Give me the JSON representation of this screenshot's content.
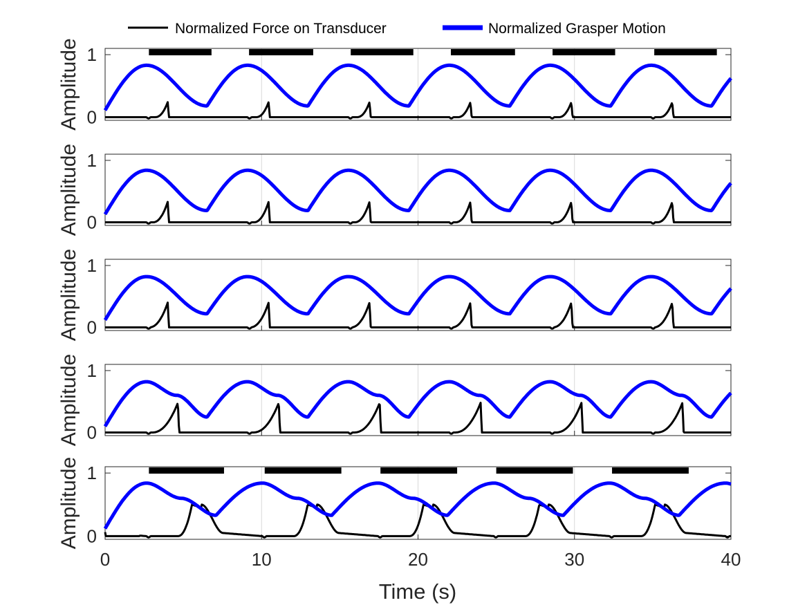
{
  "chart_data": {
    "type": "line",
    "legend": {
      "position": "top",
      "entries": [
        "Normalized Force on Transducer",
        "Normalized Grasper Motion"
      ]
    },
    "xlabel": "Time (s)",
    "xlim": [
      0,
      40
    ],
    "xticks": [
      0,
      10,
      20,
      30,
      40
    ],
    "xtick_labels": [
      "0",
      "10",
      "20",
      "30",
      "40"
    ],
    "grid": true,
    "colors": {
      "force": "#000000",
      "motion": "#0000ff",
      "axes": "#262626",
      "grid": "#d9d9d9"
    },
    "panels": [
      {
        "ylabel": "Amplitude",
        "ylim": [
          -0.05,
          1.1
        ],
        "yticks": [
          0,
          1
        ],
        "ytick_labels": [
          "0",
          "1"
        ],
        "period": 6.45,
        "phase": 0,
        "motion": {
          "max": 0.83,
          "min": 0.18,
          "start": 0.11,
          "end": 0.6,
          "shoulder": 0
        },
        "force": {
          "peak": 0.24,
          "onset": 0.5,
          "peak_offset": 1.35,
          "decay": false
        },
        "phase_bar": {
          "on": [
            [
              2.8,
              6.8
            ],
            [
              9.2,
              13.3
            ],
            [
              15.7,
              19.7
            ],
            [
              22.1,
              26.2
            ],
            [
              28.6,
              32.6
            ],
            [
              35.1,
              39.1
            ]
          ]
        }
      },
      {
        "ylabel": "Amplitude",
        "ylim": [
          -0.05,
          1.1
        ],
        "yticks": [
          0,
          1
        ],
        "ytick_labels": [
          "0",
          "1"
        ],
        "period": 6.45,
        "phase": 0,
        "motion": {
          "max": 0.84,
          "min": 0.19,
          "start": 0.13,
          "end": 0.62,
          "shoulder": 0
        },
        "force": {
          "peak": 0.33,
          "onset": 0.65,
          "peak_offset": 1.35,
          "decay": false
        },
        "phase_bar": null
      },
      {
        "ylabel": "Amplitude",
        "ylim": [
          -0.05,
          1.1
        ],
        "yticks": [
          0,
          1
        ],
        "ytick_labels": [
          "0",
          "1"
        ],
        "period": 6.45,
        "phase": 0,
        "motion": {
          "max": 0.82,
          "min": 0.22,
          "start": 0.12,
          "end": 0.52,
          "shoulder": 0
        },
        "force": {
          "peak": 0.4,
          "onset": 0.9,
          "peak_offset": 1.35,
          "decay": false
        },
        "phase_bar": null
      },
      {
        "ylabel": "Amplitude",
        "ylim": [
          -0.05,
          1.1
        ],
        "yticks": [
          0,
          1
        ],
        "ytick_labels": [
          "0",
          "1"
        ],
        "period": 6.45,
        "phase": 0,
        "motion": {
          "max": 0.82,
          "min": 0.25,
          "start": 0.1,
          "end": 0.33,
          "shoulder": 0.6
        },
        "force": {
          "peak": 0.48,
          "onset": 1.35,
          "peak_offset": 2.0,
          "decay": false
        },
        "phase_bar": null
      },
      {
        "ylabel": "Amplitude",
        "ylim": [
          -0.05,
          1.1
        ],
        "yticks": [
          0,
          1
        ],
        "ytick_labels": [
          "0",
          "1"
        ],
        "period": 7.4,
        "phase": 0,
        "motion": {
          "max": 0.84,
          "min": 0.33,
          "start": 0.12,
          "end": 0.82,
          "shoulder": 0.6
        },
        "force": {
          "peak": 0.5,
          "onset": 0.6,
          "peak_offset": 2.9,
          "decay": true
        },
        "phase_bar": {
          "on": [
            [
              2.8,
              7.6
            ],
            [
              10.2,
              15.1
            ],
            [
              17.6,
              22.5
            ],
            [
              25.0,
              29.9
            ],
            [
              32.4,
              37.3
            ]
          ]
        }
      }
    ]
  }
}
